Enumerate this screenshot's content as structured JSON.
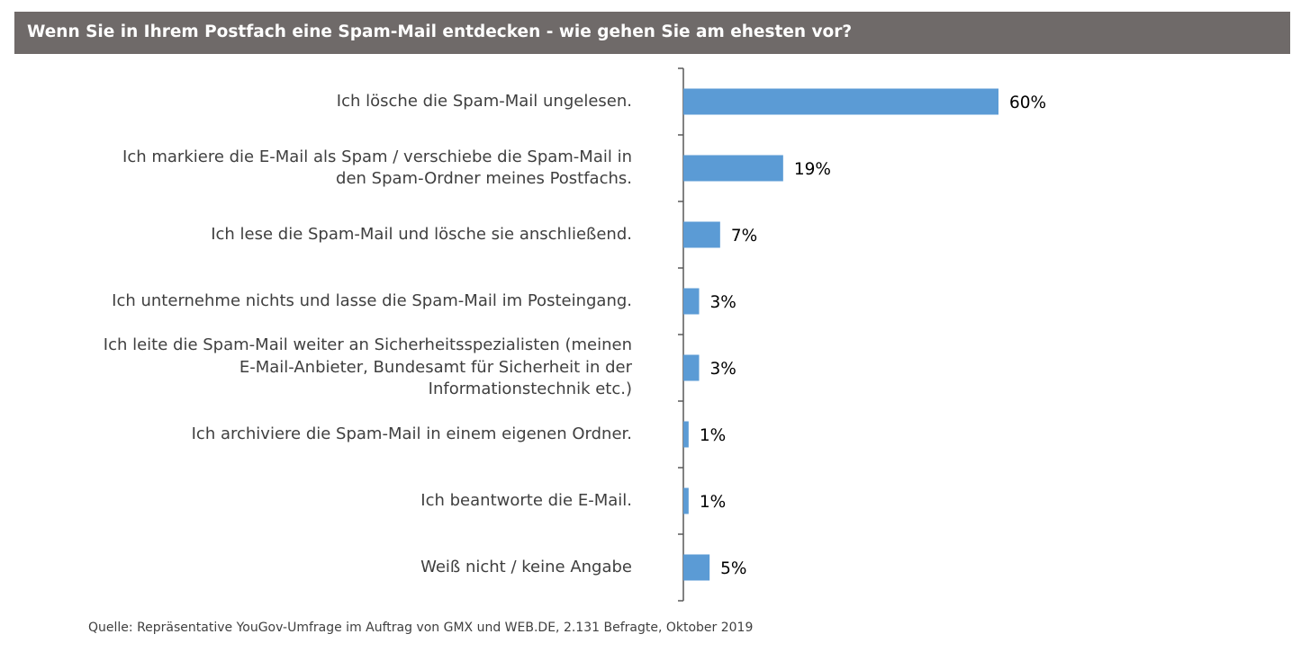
{
  "header": {
    "title": "Wenn Sie in Ihrem Postfach eine Spam-Mail entdecken - wie gehen Sie am ehesten vor?"
  },
  "chart_data": {
    "type": "bar",
    "orientation": "horizontal",
    "categories": [
      "Ich lösche die Spam-Mail ungelesen.",
      "Ich markiere die E-Mail als Spam / verschiebe die Spam-Mail in den Spam-Ordner meines Postfachs.",
      "Ich lese die Spam-Mail und lösche sie anschließend.",
      "Ich unternehme nichts und lasse die Spam-Mail im Posteingang.",
      "Ich leite die Spam-Mail weiter an Sicherheitsspezialisten (meinen E-Mail-Anbieter, Bundesamt für Sicherheit in der Informationstechnik etc.)",
      "Ich archiviere die Spam-Mail in einem eigenen Ordner.",
      "Ich beantworte die E-Mail.",
      "Weiß nicht / keine Angabe"
    ],
    "category_lines": [
      [
        "Ich lösche die Spam-Mail ungelesen."
      ],
      [
        "Ich markiere die E-Mail als Spam / verschiebe die Spam-Mail in",
        "den Spam-Ordner meines Postfachs."
      ],
      [
        "Ich lese die Spam-Mail und lösche sie anschließend."
      ],
      [
        "Ich unternehme nichts und lasse die Spam-Mail im Posteingang."
      ],
      [
        "Ich leite die Spam-Mail weiter an Sicherheitsspezialisten (meinen",
        "E-Mail-Anbieter, Bundesamt für Sicherheit in der",
        "Informationstechnik etc.)"
      ],
      [
        "Ich archiviere die Spam-Mail in einem eigenen Ordner."
      ],
      [
        "Ich beantworte die E-Mail."
      ],
      [
        "Weiß nicht / keine Angabe"
      ]
    ],
    "values": [
      60,
      19,
      7,
      3,
      3,
      1,
      1,
      5
    ],
    "value_labels": [
      "60%",
      "19%",
      "7%",
      "3%",
      "3%",
      "1%",
      "1%",
      "5%"
    ],
    "unit": "%",
    "xlim": [
      0,
      100
    ],
    "grid": false,
    "bar_color": "#5b9bd5"
  },
  "footer": {
    "source": "Quelle: Repräsentative YouGov-Umfrage im Auftrag von GMX und WEB.DE, 2.131 Befragte, Oktober 2019"
  }
}
